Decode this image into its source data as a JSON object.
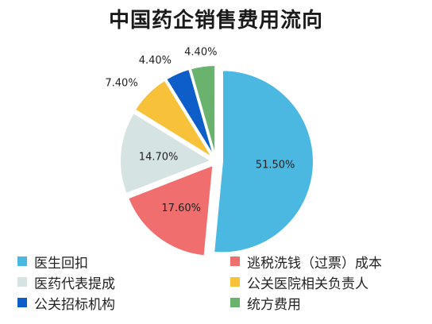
{
  "chart_data": {
    "type": "pie",
    "title": "中国药企销售费用流向",
    "legend_position": "bottom",
    "categories": [
      "医生回扣",
      "逃税洗钱（过票）成本",
      "医药代表提成",
      "公关医院相关负责人",
      "公关招标机构",
      "统方费用"
    ],
    "values": [
      51.5,
      17.6,
      14.7,
      7.4,
      4.4,
      4.4
    ],
    "value_labels": [
      "51.50%",
      "17.60%",
      "14.70%",
      "7.40%",
      "4.40%",
      "4.40%"
    ],
    "colors": [
      "#4bb8e2",
      "#f06e6e",
      "#d5e3e3",
      "#f7c23a",
      "#0d5ec9",
      "#69b36e"
    ]
  }
}
